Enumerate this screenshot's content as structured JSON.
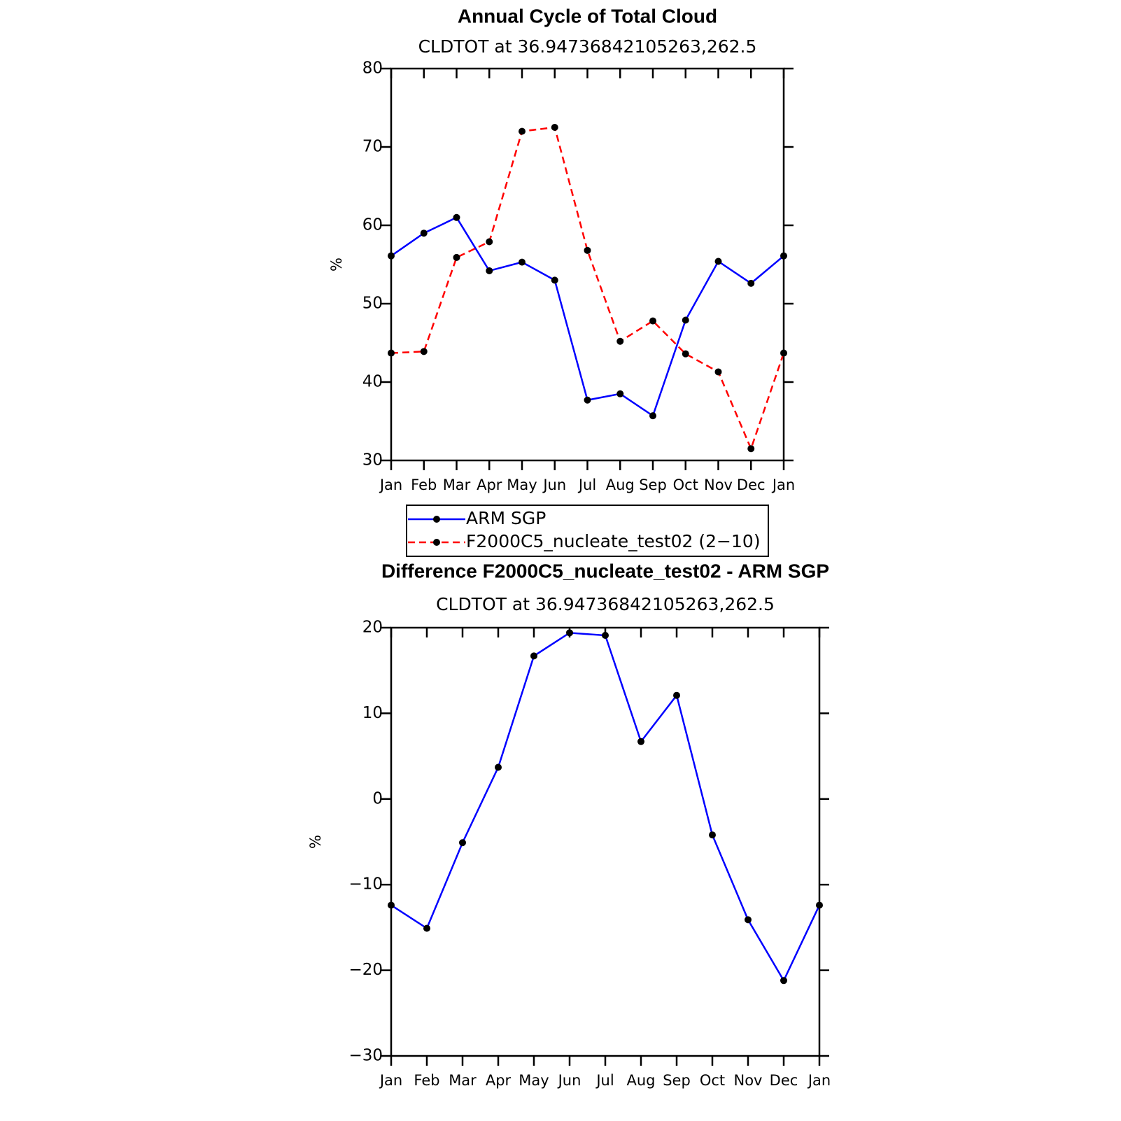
{
  "chart_data": [
    {
      "type": "line",
      "title": "Annual Cycle of Total Cloud",
      "subtitle": "CLDTOT at 36.94736842105263,262.5",
      "y_label": "%",
      "categories": [
        "Jan",
        "Feb",
        "Mar",
        "Apr",
        "May",
        "Jun",
        "Jul",
        "Aug",
        "Sep",
        "Oct",
        "Nov",
        "Dec",
        "Jan"
      ],
      "series": [
        {
          "name": "ARM SGP",
          "color": "#0000ff",
          "dash": false,
          "values": [
            56.1,
            59.0,
            61.0,
            54.2,
            55.3,
            53.0,
            37.7,
            38.5,
            35.7,
            47.9,
            55.4,
            52.6,
            56.1
          ]
        },
        {
          "name": "F2000C5_nucleate_test02 (2−10)",
          "color": "#ff0000",
          "dash": true,
          "values": [
            43.7,
            43.9,
            55.9,
            57.9,
            72.0,
            72.5,
            56.8,
            45.2,
            47.8,
            43.6,
            41.3,
            31.5,
            43.7
          ]
        }
      ],
      "ylim": [
        30,
        80
      ],
      "yticks": [
        30,
        40,
        50,
        60,
        70,
        80
      ],
      "legend": "below"
    },
    {
      "type": "line",
      "title": "Difference F2000C5_nucleate_test02 - ARM SGP",
      "subtitle": "CLDTOT at 36.94736842105263,262.5",
      "y_label": "%",
      "categories": [
        "Jan",
        "Feb",
        "Mar",
        "Apr",
        "May",
        "Jun",
        "Jul",
        "Aug",
        "Sep",
        "Oct",
        "Nov",
        "Dec",
        "Jan"
      ],
      "series": [
        {
          "color": "#0000ff",
          "dash": false,
          "values": [
            -12.4,
            -15.1,
            -5.1,
            3.7,
            16.7,
            19.4,
            19.1,
            6.7,
            12.1,
            -4.2,
            -14.1,
            -21.2,
            -12.4
          ]
        }
      ],
      "ylim": [
        -30,
        20
      ],
      "yticks": [
        {
          "value": -30,
          "label": "−30"
        },
        {
          "value": -20,
          "label": "−20"
        },
        {
          "value": -10,
          "label": "−10"
        },
        0,
        10,
        20
      ]
    }
  ]
}
